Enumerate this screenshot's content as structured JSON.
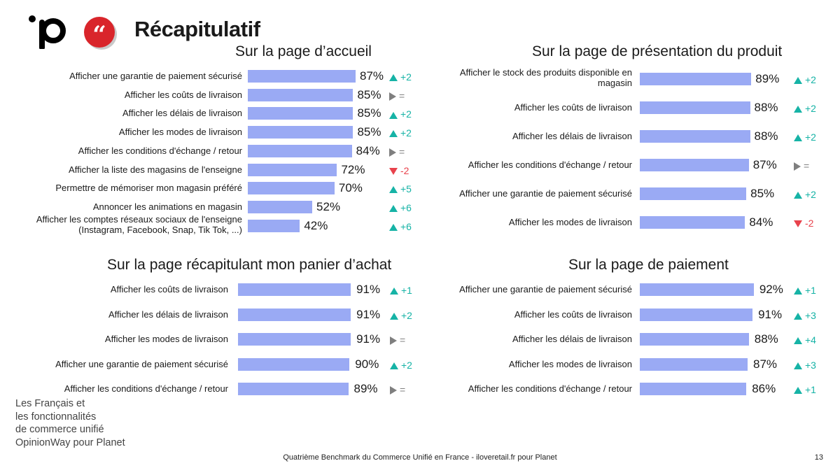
{
  "header": {
    "title": "Récapitulatif"
  },
  "colors": {
    "bar": "#9aaaf4",
    "up": "#16b3a6",
    "down": "#e8424c",
    "flat": "#7f7f7f",
    "brand_red": "#d9252b"
  },
  "chart_data": [
    {
      "type": "bar",
      "title": "Sur la page d’accueil",
      "categories": [
        "Afficher une garantie de paiement sécurisé",
        "Afficher les coûts de livraison",
        "Afficher les délais de livraison",
        "Afficher les modes de livraison",
        "Afficher les conditions d'échange / retour",
        "Afficher la liste des magasins de l'enseigne",
        "Permettre de mémoriser mon magasin préféré",
        "Annoncer les animations en magasin",
        "Afficher les comptes réseaux sociaux de l'enseigne (Instagram, Facebook, Snap, Tik Tok, ...)"
      ],
      "values": [
        87,
        85,
        85,
        85,
        84,
        72,
        70,
        52,
        42
      ],
      "labels": [
        "87%",
        "85%",
        "85%",
        "85%",
        "84%",
        "72%",
        "70%",
        "52%",
        "42%"
      ],
      "deltas": [
        {
          "dir": "up",
          "text": "+2"
        },
        {
          "dir": "flat",
          "text": "="
        },
        {
          "dir": "up",
          "text": "+2"
        },
        {
          "dir": "up",
          "text": "+2"
        },
        {
          "dir": "flat",
          "text": "="
        },
        {
          "dir": "down",
          "text": "-2"
        },
        {
          "dir": "up",
          "text": "+5"
        },
        {
          "dir": "up",
          "text": "+6"
        },
        {
          "dir": "up",
          "text": "+6"
        }
      ],
      "xlim": [
        0,
        100
      ]
    },
    {
      "type": "bar",
      "title": "Sur la page de présentation du produit",
      "categories": [
        "Afficher le stock des produits disponible en magasin",
        "Afficher les coûts de livraison",
        "Afficher les délais de livraison",
        "Afficher les conditions d'échange / retour",
        "Afficher une garantie de paiement sécurisé",
        "Afficher les modes de livraison"
      ],
      "values": [
        89,
        88,
        88,
        87,
        85,
        84
      ],
      "labels": [
        "89%",
        "88%",
        "88%",
        "87%",
        "85%",
        "84%"
      ],
      "deltas": [
        {
          "dir": "up",
          "text": "+2"
        },
        {
          "dir": "up",
          "text": "+2"
        },
        {
          "dir": "up",
          "text": "+2"
        },
        {
          "dir": "flat",
          "text": "="
        },
        {
          "dir": "up",
          "text": "+2"
        },
        {
          "dir": "down",
          "text": "-2"
        }
      ],
      "xlim": [
        0,
        100
      ]
    },
    {
      "type": "bar",
      "title": "Sur la page récapitulant mon panier d’achat",
      "categories": [
        "Afficher les coûts de livraison",
        "Afficher les délais de livraison",
        "Afficher les modes de livraison",
        "Afficher une garantie de paiement sécurisé",
        "Afficher les conditions d'échange / retour"
      ],
      "values": [
        91,
        91,
        91,
        90,
        89
      ],
      "labels": [
        "91%",
        "91%",
        "91%",
        "90%",
        "89%"
      ],
      "deltas": [
        {
          "dir": "up",
          "text": "+1"
        },
        {
          "dir": "up",
          "text": "+2"
        },
        {
          "dir": "flat",
          "text": "="
        },
        {
          "dir": "up",
          "text": "+2"
        },
        {
          "dir": "flat",
          "text": "="
        }
      ],
      "xlim": [
        0,
        100
      ]
    },
    {
      "type": "bar",
      "title": "Sur la page de paiement",
      "categories": [
        "Afficher une garantie de paiement sécurisé",
        "Afficher les coûts de livraison",
        "Afficher les délais de livraison",
        "Afficher les modes de livraison",
        "Afficher les conditions d'échange / retour"
      ],
      "values": [
        92,
        91,
        88,
        87,
        86
      ],
      "labels": [
        "92%",
        "91%",
        "88%",
        "87%",
        "86%"
      ],
      "deltas": [
        {
          "dir": "up",
          "text": "+1"
        },
        {
          "dir": "up",
          "text": "+3"
        },
        {
          "dir": "up",
          "text": "+4"
        },
        {
          "dir": "up",
          "text": "+3"
        },
        {
          "dir": "up",
          "text": "+1"
        }
      ],
      "xlim": [
        0,
        100
      ]
    }
  ],
  "source_note": [
    "Les Français et",
    "les fonctionnalités",
    "de commerce unifié",
    "OpinionWay pour Planet"
  ],
  "footer": {
    "text": "Quatrième Benchmark du Commerce Unifié en France - iloveretail.fr pour Planet",
    "page": "13"
  }
}
